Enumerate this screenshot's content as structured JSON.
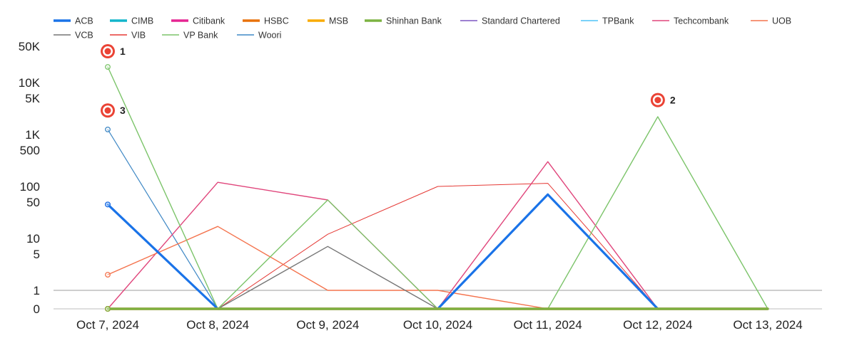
{
  "chart_data": {
    "type": "line",
    "title": "",
    "xlabel": "",
    "ylabel": "",
    "y_scale": "symlog",
    "legend_position": "top-left",
    "grid": false,
    "categories": [
      "Oct 7, 2024",
      "Oct 8, 2024",
      "Oct 9, 2024",
      "Oct 10, 2024",
      "Oct 11, 2024",
      "Oct 12, 2024",
      "Oct 13, 2024"
    ],
    "y_ticks": [
      {
        "label": "50K",
        "value": 50000
      },
      {
        "label": "10K",
        "value": 10000
      },
      {
        "label": "5K",
        "value": 5000
      },
      {
        "label": "1K",
        "value": 1000
      },
      {
        "label": "500",
        "value": 500
      },
      {
        "label": "100",
        "value": 100
      },
      {
        "label": "50",
        "value": 50
      },
      {
        "label": "10",
        "value": 10
      },
      {
        "label": "5",
        "value": 5
      },
      {
        "label": "1",
        "value": 1
      },
      {
        "label": "0",
        "value": 0
      }
    ],
    "reference_line": 1,
    "series": [
      {
        "name": "ACB",
        "color": "#1a73e8",
        "width": 3.2,
        "values": [
          45,
          0,
          0,
          0,
          70,
          0,
          0
        ]
      },
      {
        "name": "CIMB",
        "color": "#12b5cb",
        "width": 3.2,
        "values": [
          0,
          0,
          0,
          0,
          0,
          0,
          0
        ]
      },
      {
        "name": "Citibank",
        "color": "#e52592",
        "width": 3.2,
        "values": [
          0,
          0,
          0,
          0,
          0,
          0,
          0
        ]
      },
      {
        "name": "HSBC",
        "color": "#e8710a",
        "width": 3.2,
        "values": [
          0,
          0,
          0,
          0,
          0,
          0,
          0
        ]
      },
      {
        "name": "MSB",
        "color": "#f9ab00",
        "width": 3.2,
        "values": [
          0,
          0,
          0,
          0,
          0,
          0,
          0
        ]
      },
      {
        "name": "Shinhan Bank",
        "color": "#7cb342",
        "width": 3.2,
        "values": [
          0,
          0,
          0,
          0,
          0,
          0,
          0
        ]
      },
      {
        "name": "Standard Chartered",
        "color": "#7e57c2",
        "width": 1.4,
        "values": [
          45,
          0,
          0,
          0,
          0,
          0,
          0
        ]
      },
      {
        "name": "TPBank",
        "color": "#4fc3f7",
        "width": 1.4,
        "values": [
          0,
          0,
          0,
          0,
          0,
          0,
          0
        ]
      },
      {
        "name": "Techcombank",
        "color": "#e0457b",
        "width": 1.4,
        "values": [
          0,
          120,
          55,
          0,
          300,
          0,
          0
        ]
      },
      {
        "name": "UOB",
        "color": "#f4734d",
        "width": 1.4,
        "values": [
          2,
          17,
          1,
          1,
          0,
          0,
          0
        ]
      },
      {
        "name": "VCB",
        "color": "#757575",
        "width": 1.4,
        "values": [
          0,
          0,
          7,
          0,
          0,
          0,
          0
        ]
      },
      {
        "name": "VIB",
        "color": "#e53935",
        "width": 1.0,
        "values": [
          0,
          0,
          12,
          100,
          115,
          0,
          0
        ]
      },
      {
        "name": "VP Bank",
        "color": "#7cc46a",
        "width": 1.4,
        "values": [
          20000,
          0,
          55,
          0,
          0,
          2200,
          0
        ]
      },
      {
        "name": "Woori",
        "color": "#3f88c5",
        "width": 1.2,
        "values": [
          1250,
          0,
          0,
          0,
          0,
          0,
          0
        ]
      }
    ],
    "annotations": [
      {
        "label": "1",
        "x_index": 0,
        "value": 40000
      },
      {
        "label": "3",
        "x_index": 0,
        "value": 2900
      },
      {
        "label": "2",
        "x_index": 5,
        "value": 4600
      }
    ]
  }
}
